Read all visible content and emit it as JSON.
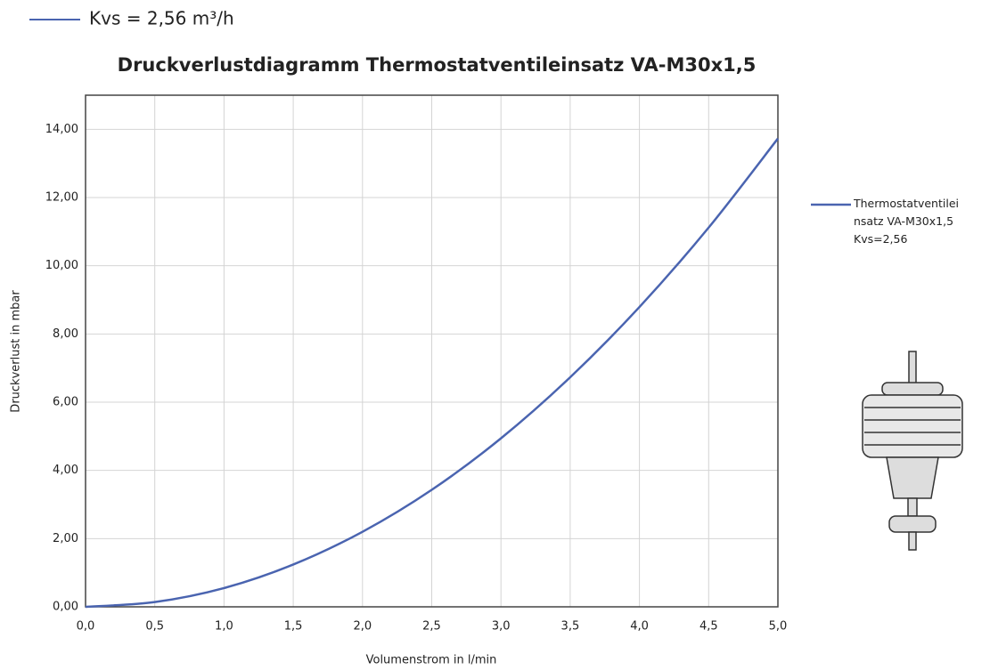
{
  "chart_data": {
    "type": "line",
    "title": "Druckverlustdiagramm Thermostatventileinsatz VA-M30x1,5",
    "annotations": [
      "Kvs = 2,56 m³/h"
    ],
    "x_label": "Volumenstrom in l/min",
    "y_label": "Druckverlust in mbar",
    "x": [
      0,
      0.5,
      1,
      1.5,
      2,
      2.5,
      3,
      3.5,
      4,
      4.5,
      5
    ],
    "series": [
      {
        "name": "Thermostatventileinsatz VA-M30x1,5 Kvs=2,56",
        "color": "#4a64b0",
        "values": [
          0,
          0.14,
          0.55,
          1.24,
          2.2,
          3.43,
          4.94,
          6.73,
          8.79,
          11.12,
          13.73
        ]
      }
    ],
    "xlim": [
      0,
      5
    ],
    "ylim": [
      0,
      15
    ],
    "xticks": [
      {
        "value": 0,
        "label": "0,0"
      },
      {
        "value": 0.5,
        "label": "0,5"
      },
      {
        "value": 1,
        "label": "1,0"
      },
      {
        "value": 1.5,
        "label": "1,5"
      },
      {
        "value": 2,
        "label": "2,0"
      },
      {
        "value": 2.5,
        "label": "2,5"
      },
      {
        "value": 3,
        "label": "3,0"
      },
      {
        "value": 3.5,
        "label": "3,5"
      },
      {
        "value": 4,
        "label": "4,0"
      },
      {
        "value": 4.5,
        "label": "4,5"
      },
      {
        "value": 5,
        "label": "5,0"
      }
    ],
    "yticks": [
      {
        "value": 0,
        "label": "0,00"
      },
      {
        "value": 2,
        "label": "2,00"
      },
      {
        "value": 4,
        "label": "4,00"
      },
      {
        "value": 6,
        "label": "6,00"
      },
      {
        "value": 8,
        "label": "8,00"
      },
      {
        "value": 10,
        "label": "10,00"
      },
      {
        "value": 12,
        "label": "12,00"
      },
      {
        "value": 14,
        "label": "14,00"
      }
    ],
    "grid": true,
    "legend": "right"
  }
}
